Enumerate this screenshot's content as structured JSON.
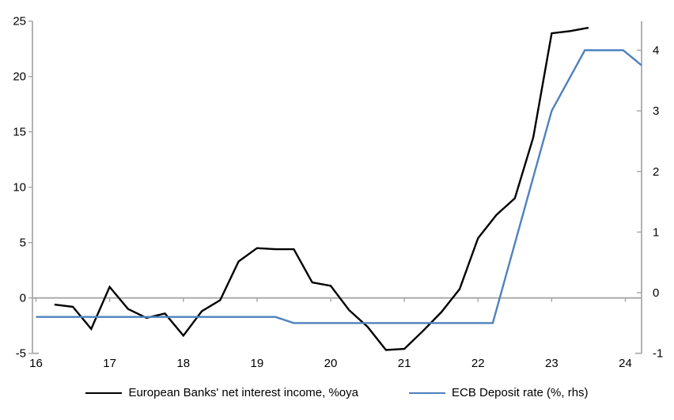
{
  "chart_data": {
    "type": "line",
    "title": "",
    "xlabel": "",
    "ylabel_left": "",
    "ylabel_right": "",
    "grid": false,
    "zero_line": true,
    "legend_position": "bottom",
    "axis_color": "#a6a6a6",
    "x_axis": {
      "range": [
        16,
        24.22
      ],
      "ticks": [
        16,
        17,
        18,
        19,
        20,
        21,
        22,
        23,
        24
      ],
      "labels": [
        "16",
        "17",
        "18",
        "19",
        "20",
        "21",
        "22",
        "23",
        "24"
      ]
    },
    "left_axis": {
      "range": [
        -5,
        25
      ],
      "ticks": [
        -5,
        0,
        5,
        10,
        15,
        20,
        25
      ]
    },
    "right_axis": {
      "range": [
        -1,
        4.48
      ],
      "ticks": [
        -1,
        0,
        1,
        2,
        3,
        4
      ]
    },
    "series": [
      {
        "name": "European Banks' net interest income, %oya",
        "axis": "left",
        "color": "#000000",
        "x": [
          16.25,
          16.5,
          16.75,
          17.0,
          17.25,
          17.5,
          17.75,
          18.0,
          18.25,
          18.5,
          18.75,
          19.0,
          19.25,
          19.5,
          19.75,
          20.0,
          20.25,
          20.5,
          20.75,
          21.0,
          21.25,
          21.5,
          21.75,
          22.0,
          22.25,
          22.5,
          22.75,
          23.0,
          23.25,
          23.5
        ],
        "y": [
          -0.6,
          -0.8,
          -2.8,
          1.0,
          -1.0,
          -1.8,
          -1.4,
          -3.4,
          -1.2,
          -0.2,
          3.3,
          4.5,
          4.4,
          4.4,
          1.4,
          1.1,
          -1.1,
          -2.6,
          -4.7,
          -4.6,
          -3.0,
          -1.3,
          0.8,
          5.4,
          7.5,
          9.0,
          14.5,
          23.9,
          24.1,
          24.4
        ]
      },
      {
        "name": "ECB Deposit rate (%, rhs)",
        "axis": "right",
        "color": "#4f81bd",
        "x": [
          16.0,
          19.25,
          19.5,
          22.2,
          23.0,
          23.45,
          23.97,
          24.22
        ],
        "y": [
          -0.4,
          -0.4,
          -0.5,
          -0.5,
          3.0,
          4.0,
          4.0,
          3.75
        ]
      }
    ]
  }
}
